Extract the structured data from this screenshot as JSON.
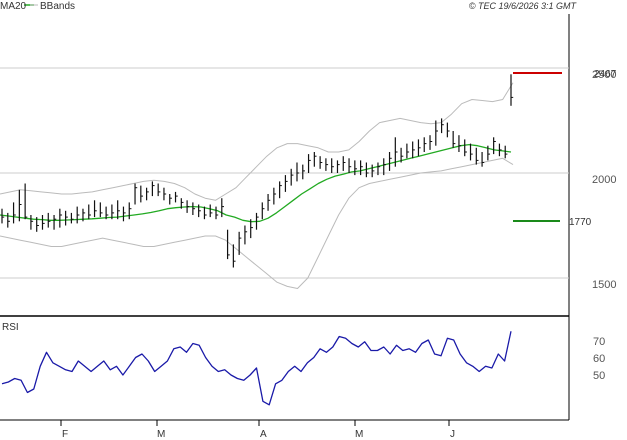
{
  "header": {
    "legend": [
      {
        "label": "MA20",
        "color": "#22aa22"
      },
      {
        "label": "BBands",
        "color": "#bbbbbb"
      }
    ],
    "copyright": "© TEC 19/6/2026 3:1 GMT"
  },
  "chart_data": [
    {
      "type": "ohlc",
      "ylim": [
        1370,
        2650
      ],
      "y_ticks": [
        "2500",
        "2000",
        "1500"
      ],
      "x_ticks": [
        "F",
        "M",
        "A",
        "M",
        "J"
      ],
      "levels": [
        {
          "value": 2467,
          "label": "2467",
          "color": "#cc0000"
        },
        {
          "value": 1770,
          "label": "1770",
          "color": "#1a8a1a"
        }
      ],
      "series": [
        {
          "name": "MA20",
          "color": "#22aa22"
        },
        {
          "name": "BBands",
          "color": "#bbbbbb"
        }
      ],
      "ohlc": [
        [
          1830,
          1760,
          1790
        ],
        [
          1810,
          1740,
          1770
        ],
        [
          1860,
          1760,
          1800
        ],
        [
          1920,
          1770,
          1850
        ],
        [
          1950,
          1780,
          1790
        ],
        [
          1800,
          1730,
          1770
        ],
        [
          1790,
          1720,
          1750
        ],
        [
          1800,
          1730,
          1760
        ],
        [
          1810,
          1740,
          1770
        ],
        [
          1800,
          1730,
          1780
        ],
        [
          1830,
          1740,
          1800
        ],
        [
          1820,
          1750,
          1790
        ],
        [
          1810,
          1760,
          1780
        ],
        [
          1840,
          1760,
          1800
        ],
        [
          1830,
          1770,
          1810
        ],
        [
          1850,
          1780,
          1800
        ],
        [
          1870,
          1790,
          1820
        ],
        [
          1860,
          1790,
          1810
        ],
        [
          1840,
          1780,
          1800
        ],
        [
          1850,
          1780,
          1810
        ],
        [
          1870,
          1780,
          1820
        ],
        [
          1840,
          1770,
          1810
        ],
        [
          1860,
          1780,
          1830
        ],
        [
          1950,
          1850,
          1930
        ],
        [
          1940,
          1860,
          1890
        ],
        [
          1930,
          1870,
          1910
        ],
        [
          1960,
          1890,
          1940
        ],
        [
          1950,
          1890,
          1910
        ],
        [
          1930,
          1870,
          1900
        ],
        [
          1900,
          1850,
          1880
        ],
        [
          1910,
          1860,
          1890
        ],
        [
          1880,
          1830,
          1860
        ],
        [
          1870,
          1810,
          1840
        ],
        [
          1860,
          1800,
          1830
        ],
        [
          1850,
          1790,
          1820
        ],
        [
          1840,
          1780,
          1800
        ],
        [
          1850,
          1790,
          1810
        ],
        [
          1840,
          1780,
          1800
        ],
        [
          1880,
          1790,
          1840
        ],
        [
          1730,
          1590,
          1610
        ],
        [
          1660,
          1550,
          1580
        ],
        [
          1720,
          1610,
          1690
        ],
        [
          1750,
          1660,
          1720
        ],
        [
          1780,
          1690,
          1740
        ],
        [
          1810,
          1730,
          1790
        ],
        [
          1860,
          1780,
          1830
        ],
        [
          1900,
          1820,
          1870
        ],
        [
          1930,
          1850,
          1900
        ],
        [
          1960,
          1880,
          1940
        ],
        [
          1990,
          1910,
          1960
        ],
        [
          2020,
          1940,
          1990
        ],
        [
          2050,
          1960,
          2000
        ],
        [
          2040,
          1970,
          2010
        ],
        [
          2090,
          2000,
          2060
        ],
        [
          2100,
          2030,
          2080
        ],
        [
          2080,
          2020,
          2050
        ],
        [
          2070,
          2010,
          2040
        ],
        [
          2070,
          2000,
          2030
        ],
        [
          2060,
          2000,
          2040
        ],
        [
          2080,
          2010,
          2050
        ],
        [
          2070,
          2000,
          2030
        ],
        [
          2060,
          1990,
          2020
        ],
        [
          2060,
          1990,
          2030
        ],
        [
          2050,
          1980,
          2000
        ],
        [
          2040,
          1980,
          2010
        ],
        [
          2050,
          1990,
          2030
        ],
        [
          2070,
          1990,
          2040
        ],
        [
          2100,
          2010,
          2070
        ],
        [
          2170,
          2030,
          2100
        ],
        [
          2120,
          2050,
          2080
        ],
        [
          2140,
          2070,
          2100
        ],
        [
          2150,
          2070,
          2110
        ],
        [
          2160,
          2080,
          2120
        ],
        [
          2170,
          2100,
          2140
        ],
        [
          2180,
          2110,
          2150
        ],
        [
          2250,
          2130,
          2200
        ],
        [
          2260,
          2190,
          2230
        ],
        [
          2240,
          2170,
          2200
        ],
        [
          2200,
          2120,
          2140
        ],
        [
          2180,
          2100,
          2130
        ],
        [
          2160,
          2080,
          2100
        ],
        [
          2140,
          2060,
          2090
        ],
        [
          2120,
          2040,
          2060
        ],
        [
          2100,
          2030,
          2050
        ],
        [
          2130,
          2060,
          2090
        ],
        [
          2170,
          2090,
          2150
        ],
        [
          2140,
          2080,
          2110
        ],
        [
          2130,
          2070,
          2090
        ],
        [
          2470,
          2320,
          2360
        ]
      ],
      "ma20": [
        1800,
        1795,
        1790,
        1785,
        1780,
        1778,
        1775,
        1775,
        1776,
        1778,
        1780,
        1782,
        1785,
        1788,
        1790,
        1795,
        1800,
        1805,
        1812,
        1820,
        1830,
        1835,
        1838,
        1840,
        1838,
        1830,
        1820,
        1800,
        1790,
        1775,
        1768,
        1770,
        1785,
        1810,
        1840,
        1870,
        1900,
        1925,
        1950,
        1970,
        1985,
        1995,
        2005,
        2010,
        2020,
        2030,
        2040,
        2050,
        2060,
        2070,
        2080,
        2090,
        2100,
        2110,
        2120,
        2130,
        2135,
        2130,
        2120,
        2110,
        2105,
        2100
      ],
      "bb_upper": [
        1900,
        1910,
        1920,
        1915,
        1910,
        1905,
        1900,
        1900,
        1905,
        1910,
        1920,
        1930,
        1940,
        1950,
        1960,
        1965,
        1960,
        1950,
        1930,
        1900,
        1880,
        1870,
        1900,
        1930,
        1980,
        2030,
        2080,
        2120,
        2140,
        2140,
        2130,
        2120,
        2100,
        2100,
        2110,
        2150,
        2200,
        2240,
        2250,
        2260,
        2250,
        2240,
        2235,
        2240,
        2280,
        2330,
        2350,
        2345,
        2340,
        2350,
        2430
      ],
      "bb_lower": [
        1700,
        1690,
        1680,
        1670,
        1660,
        1650,
        1650,
        1660,
        1670,
        1680,
        1690,
        1680,
        1670,
        1660,
        1650,
        1650,
        1660,
        1670,
        1680,
        1690,
        1700,
        1700,
        1680,
        1640,
        1600,
        1560,
        1520,
        1480,
        1460,
        1450,
        1500,
        1600,
        1700,
        1800,
        1880,
        1930,
        1950,
        1960,
        1970,
        1980,
        1990,
        2000,
        2005,
        2010,
        2020,
        2030,
        2040,
        2050,
        2060,
        2070,
        2040
      ]
    },
    {
      "type": "line",
      "title": "RSI",
      "y_ticks": [
        "70",
        "60",
        "50"
      ],
      "ylim": [
        28,
        82
      ],
      "series": [
        {
          "name": "RSI",
          "color": "#1a1aa8",
          "values": [
            45,
            46,
            48,
            47,
            40,
            42,
            55,
            63,
            57,
            55,
            53,
            52,
            58,
            55,
            52,
            55,
            58,
            53,
            55,
            50,
            55,
            60,
            62,
            58,
            52,
            55,
            58,
            65,
            66,
            63,
            68,
            67,
            60,
            55,
            52,
            53,
            50,
            48,
            47,
            50,
            54,
            35,
            33,
            45,
            47,
            52,
            55,
            52,
            57,
            60,
            65,
            63,
            66,
            72,
            71,
            68,
            66,
            69,
            64,
            64,
            66,
            62,
            67,
            64,
            65,
            63,
            68,
            70,
            62,
            61,
            71,
            70,
            62,
            57,
            55,
            52,
            55,
            54,
            62,
            58,
            75
          ]
        }
      ]
    }
  ]
}
